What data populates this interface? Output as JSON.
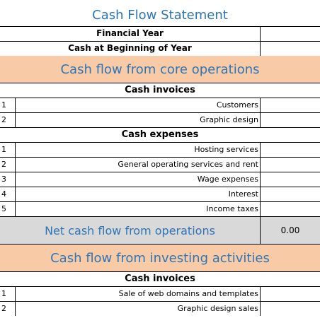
{
  "title": "Cash Flow Statement",
  "header_rows": [
    {
      "label": "Financial Year",
      "value": ""
    },
    {
      "label": "Cash at Beginning of Year",
      "value": ""
    }
  ],
  "sections": {
    "core": {
      "title": "Cash flow from core operations",
      "invoices_heading": "Cash invoices",
      "invoices": [
        {
          "num": "1",
          "label": "Customers"
        },
        {
          "num": "2",
          "label": "Graphic design"
        }
      ],
      "expenses_heading": "Cash expenses",
      "expenses": [
        {
          "num": "1",
          "label": "Hosting services"
        },
        {
          "num": "2",
          "label": "General operating services and rent"
        },
        {
          "num": "3",
          "label": "Wage expenses"
        },
        {
          "num": "4",
          "label": "Interest"
        },
        {
          "num": "5",
          "label": "Income taxes"
        }
      ],
      "net_label": "Net cash flow from operations",
      "net_value": "0.00"
    },
    "investing": {
      "title": "Cash flow from investing activities",
      "invoices_heading": "Cash invoices",
      "invoices": [
        {
          "num": "1",
          "label": "Sale of web domains and templates"
        },
        {
          "num": "2",
          "label": "Graphic design sales"
        }
      ]
    }
  }
}
